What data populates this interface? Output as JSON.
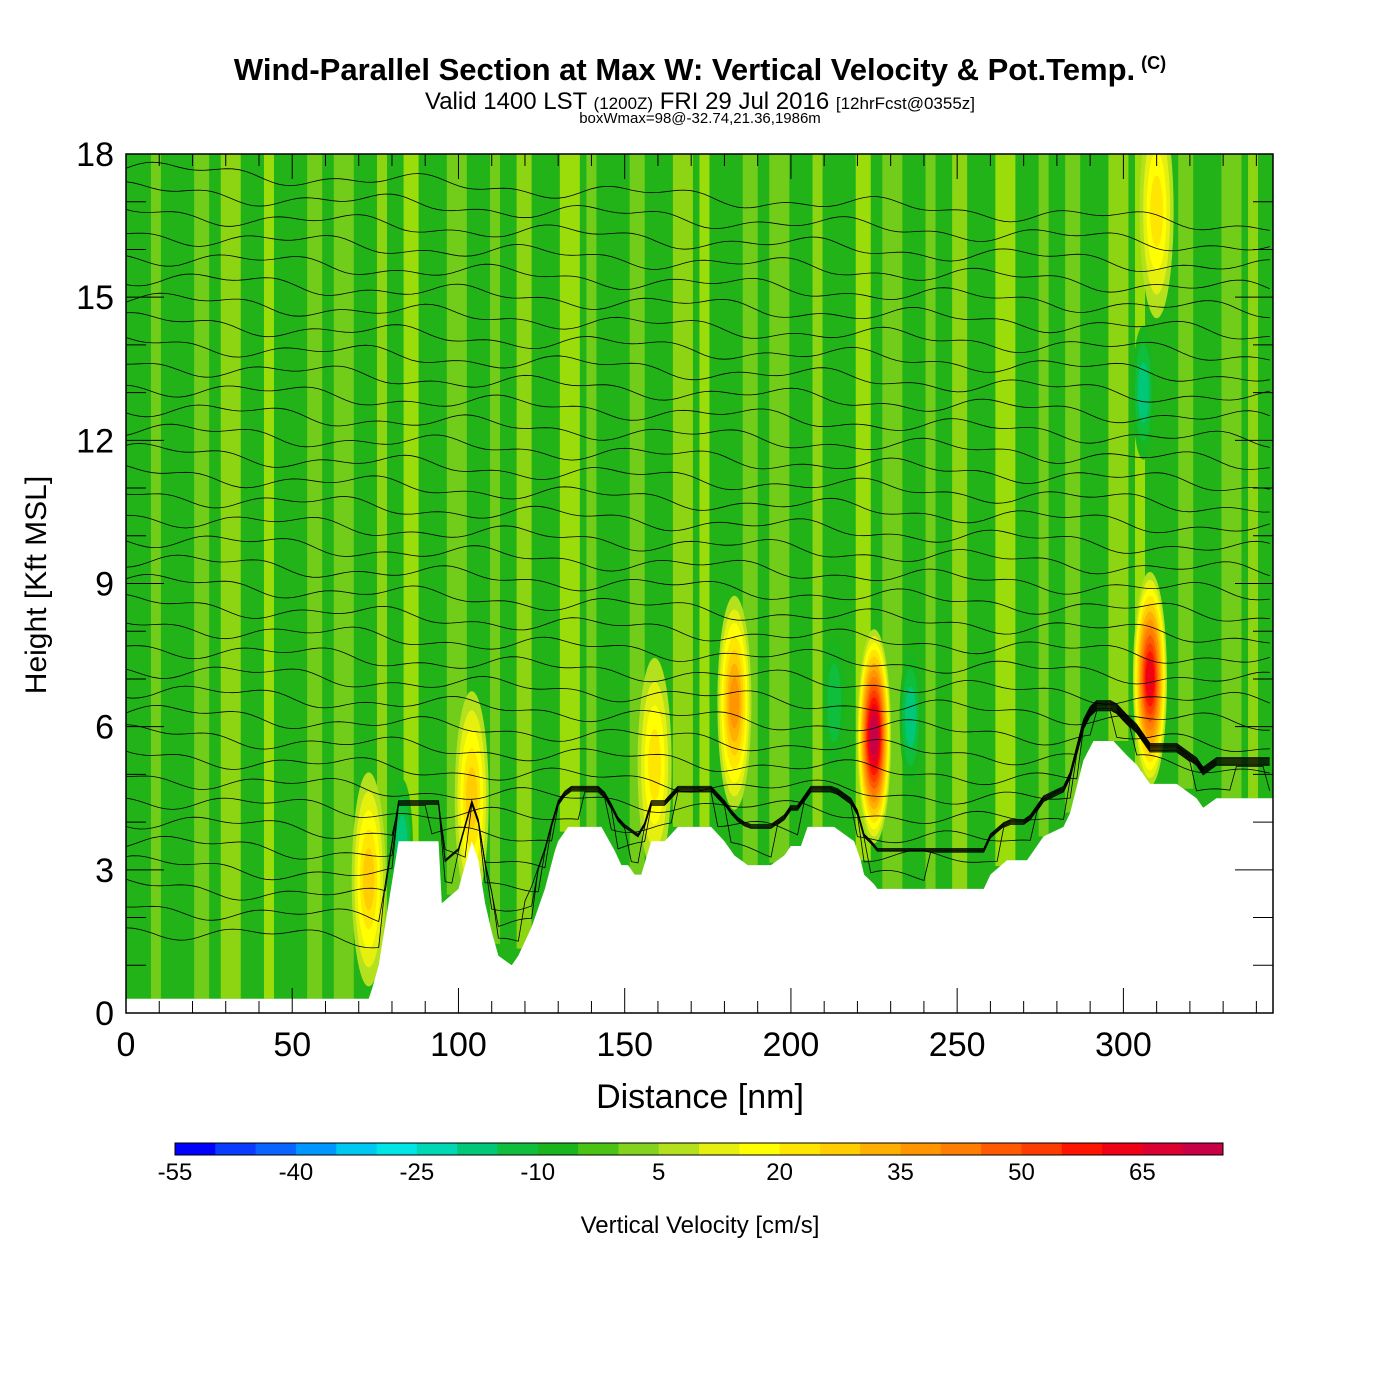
{
  "header": {
    "title": "Wind-Parallel Section at Max W: Vertical Velocity & Pot.Temp.",
    "copyright": "(C)",
    "valid_prefix": "Valid 1400 LST",
    "valid_utc": "(1200Z)",
    "valid_date": "FRI 29 Jul 2016",
    "forecast": "[12hrFcst@0355z]",
    "box_info": "boxWmax=98@-32.74,21.36,1986m"
  },
  "colors": {
    "background_field": "#22b318",
    "terrain": "#ffffff",
    "contour": "#000000"
  },
  "chart_data": {
    "type": "heatmap",
    "title": "Wind-Parallel Section at Max W: Vertical Velocity & Pot.Temp.",
    "xlabel": "Distance [nm]",
    "ylabel": "Height [Kft MSL]",
    "xlim": [
      0,
      345
    ],
    "ylim": [
      0,
      18
    ],
    "xticks": [
      0,
      50,
      100,
      150,
      200,
      250,
      300
    ],
    "yticks": [
      0,
      3,
      6,
      9,
      12,
      15,
      18
    ],
    "grid": false,
    "colorbar": {
      "label": "Vertical Velocity [cm/s]",
      "min": -55,
      "max": 75,
      "step": 5,
      "tick_labels": [
        -55,
        -40,
        -25,
        -10,
        5,
        20,
        35,
        50,
        65
      ],
      "colors": [
        "#0000ff",
        "#0a3cff",
        "#0a64ff",
        "#0096ff",
        "#00c8f0",
        "#00e6e6",
        "#00d7b4",
        "#00c878",
        "#0fbe3c",
        "#19b41e",
        "#4bc314",
        "#82d21e",
        "#b4e11e",
        "#e6f00f",
        "#ffff00",
        "#ffe600",
        "#ffcd00",
        "#ffaf00",
        "#ff9600",
        "#ff7d00",
        "#ff5a00",
        "#ff3c00",
        "#ff1400",
        "#f00014",
        "#dc0032",
        "#c80046"
      ]
    },
    "terrain_profile": {
      "distance": [
        0,
        73,
        74,
        76,
        79,
        82,
        94,
        95,
        100,
        104,
        106,
        108,
        110,
        112,
        116,
        118,
        120,
        122,
        126,
        129,
        130,
        131,
        133,
        135,
        143,
        147,
        149,
        151,
        153,
        155,
        158,
        162,
        166,
        170,
        176,
        180,
        183,
        187,
        190,
        194,
        198,
        200,
        203,
        205,
        209,
        213,
        219,
        221,
        222,
        225,
        226,
        227,
        237,
        244,
        248,
        252,
        258,
        260,
        265,
        268,
        271,
        276,
        282,
        284,
        288,
        291,
        295,
        297,
        301,
        304,
        308,
        312,
        316,
        322,
        324,
        328,
        345
      ],
      "height": [
        0.3,
        0.3,
        0.5,
        1.0,
        2.3,
        3.6,
        3.6,
        2.3,
        2.6,
        3.6,
        3.2,
        2.3,
        1.7,
        1.2,
        1.0,
        1.2,
        1.5,
        1.8,
        2.6,
        3.4,
        3.6,
        3.7,
        3.9,
        3.9,
        3.9,
        3.4,
        3.1,
        3.1,
        2.9,
        2.9,
        3.6,
        3.6,
        3.9,
        3.9,
        3.9,
        3.6,
        3.3,
        3.1,
        3.1,
        3.1,
        3.3,
        3.5,
        3.5,
        3.9,
        3.9,
        3.9,
        3.6,
        3.2,
        2.9,
        2.7,
        2.6,
        2.6,
        2.6,
        2.6,
        2.6,
        2.6,
        2.6,
        2.9,
        3.2,
        3.2,
        3.2,
        3.7,
        3.9,
        4.2,
        5.3,
        5.7,
        5.7,
        5.7,
        5.4,
        5.2,
        4.8,
        4.8,
        4.8,
        4.5,
        4.3,
        4.5,
        4.5
      ]
    },
    "updrafts": [
      {
        "distance": 183,
        "height": 6.5,
        "max_w": 38
      },
      {
        "distance": 225,
        "height": 5.8,
        "max_w": 70
      },
      {
        "distance": 308,
        "height": 7.0,
        "max_w": 62
      },
      {
        "distance": 310,
        "height": 16.8,
        "max_w": 22
      },
      {
        "distance": 104,
        "height": 4.5,
        "max_w": 28
      },
      {
        "distance": 159,
        "height": 5.2,
        "max_w": 22
      },
      {
        "distance": 73,
        "height": 2.8,
        "max_w": 25
      }
    ],
    "downdrafts": [
      {
        "distance": 83,
        "height": 3.5,
        "min_w": -22
      },
      {
        "distance": 213,
        "height": 6.5,
        "min_w": -18
      },
      {
        "distance": 236,
        "height": 6.2,
        "min_w": -20
      },
      {
        "distance": 306,
        "height": 13.0,
        "min_w": -20
      }
    ],
    "isentropes": {
      "label": "Potential Temperature",
      "count": 36
    }
  }
}
